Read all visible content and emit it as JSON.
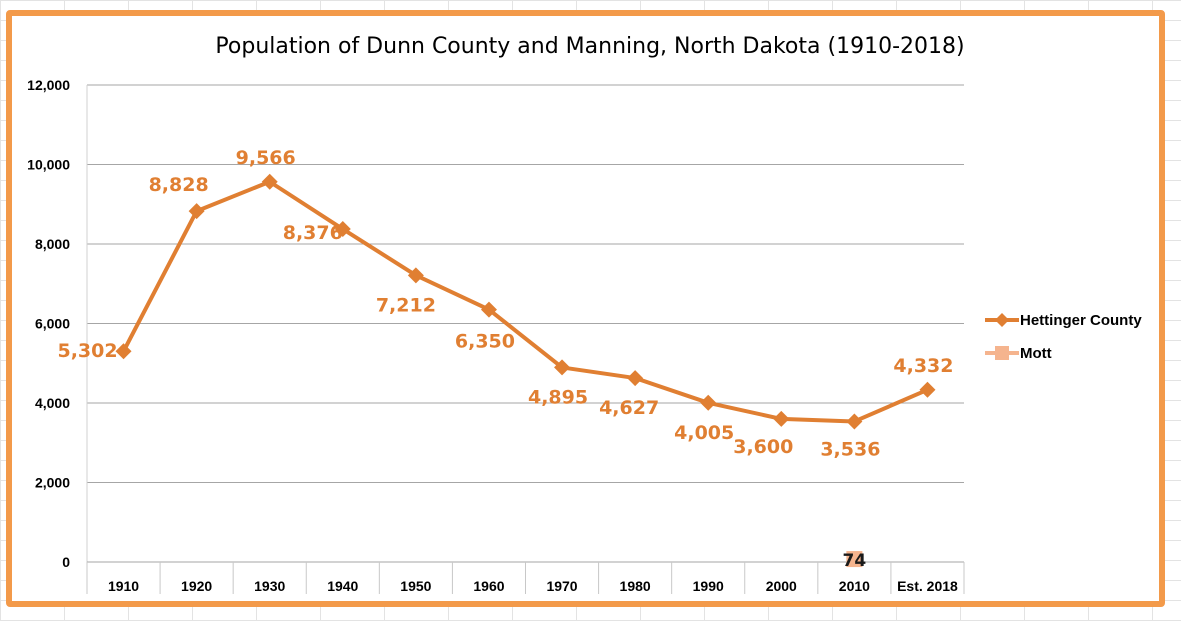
{
  "colors": {
    "frame": "#f39a4a",
    "series_primary": "#e07f32",
    "series_secondary": "#f5b48e",
    "label_primary": "#e07f32",
    "gridline": "#a6a6a6"
  },
  "chart_data": {
    "type": "line",
    "title": "Population of Dunn County and Manning, North Dakota (1910-2018)",
    "xlabel": "",
    "ylabel": "",
    "categories": [
      "1910",
      "1920",
      "1930",
      "1940",
      "1950",
      "1960",
      "1970",
      "1980",
      "1990",
      "2000",
      "2010",
      "Est. 2018"
    ],
    "ylim": [
      0,
      12000
    ],
    "yticks": [
      0,
      2000,
      4000,
      6000,
      8000,
      10000,
      12000
    ],
    "ytick_labels": [
      "0",
      "2,000",
      "4,000",
      "6,000",
      "8,000",
      "10,000",
      "12,000"
    ],
    "grid": "horizontal",
    "legend_position": "right",
    "series": [
      {
        "name": "Hettinger County",
        "marker": "diamond",
        "values": [
          5302,
          8828,
          9566,
          8376,
          7212,
          6350,
          4895,
          4627,
          4005,
          3600,
          3536,
          4332
        ],
        "labels": [
          "5,302",
          "8,828",
          "9,566",
          "8,376",
          "7,212",
          "6,350",
          "4,895",
          "4,627",
          "4,005",
          "3,600",
          "3,536",
          "4,332"
        ]
      },
      {
        "name": "Mott",
        "marker": "square",
        "values": [
          null,
          null,
          null,
          null,
          null,
          null,
          null,
          null,
          null,
          null,
          74,
          null
        ],
        "labels": [
          "",
          "",
          "",
          "",
          "",
          "",
          "",
          "",
          "",
          "",
          "74",
          ""
        ]
      }
    ]
  }
}
